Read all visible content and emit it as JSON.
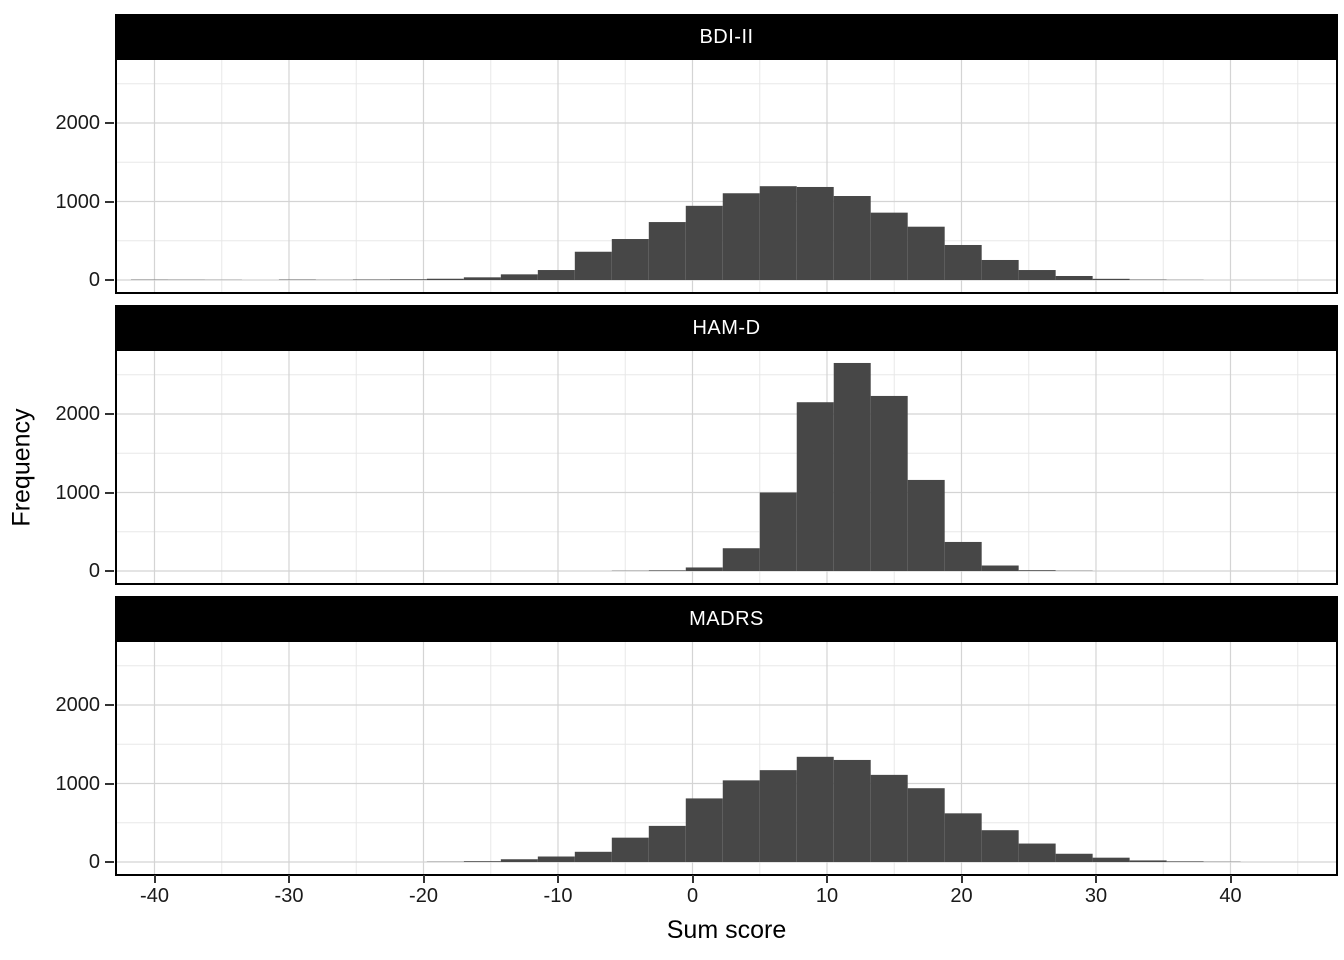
{
  "figure": {
    "x_axis": {
      "title": "Sum score",
      "ticks": [
        -40,
        -30,
        -20,
        -10,
        0,
        10,
        20,
        30,
        40
      ],
      "minor_ticks": [
        -35,
        -25,
        -15,
        -5,
        5,
        15,
        25,
        35,
        45
      ],
      "range": [
        -42.8,
        47.9
      ]
    },
    "y_axis": {
      "title": "Frequency",
      "ticks": [
        0,
        1000,
        2000
      ],
      "minor_ticks": [
        500,
        1500,
        2500
      ],
      "range": [
        -132,
        2782
      ]
    },
    "colors": {
      "bar_fill": "#474747",
      "strip_background": "#000000",
      "strip_text": "#ffffff",
      "grid_major": "#d4d4d4",
      "grid_minor": "#e8e8e8",
      "panel_border": "#000000",
      "tick_text": "#1a1a1a",
      "background": "#ffffff"
    }
  },
  "chart_data": [
    {
      "type": "bar",
      "subtype": "histogram",
      "facet": "BDI-II",
      "xlabel": "Sum score",
      "ylabel": "Frequency",
      "bin_start": -41.75,
      "bin_width": 2.75,
      "frequencies": [
        4,
        3,
        2,
        0,
        5,
        2,
        6,
        9,
        16,
        34,
        72,
        127,
        360,
        522,
        738,
        945,
        1105,
        1195,
        1185,
        1070,
        858,
        679,
        446,
        255,
        127,
        51,
        15,
        5,
        2,
        0,
        0,
        0,
        0
      ]
    },
    {
      "type": "bar",
      "subtype": "histogram",
      "facet": "HAM-D",
      "xlabel": "Sum score",
      "ylabel": "Frequency",
      "bin_start": -41.75,
      "bin_width": 2.75,
      "frequencies": [
        0,
        0,
        0,
        0,
        0,
        0,
        0,
        0,
        0,
        0,
        0,
        0,
        0,
        3,
        8,
        45,
        290,
        1000,
        2150,
        2650,
        2230,
        1160,
        370,
        70,
        10,
        3,
        0,
        0,
        0,
        0,
        0,
        0,
        0
      ]
    },
    {
      "type": "bar",
      "subtype": "histogram",
      "facet": "MADRS",
      "xlabel": "Sum score",
      "ylabel": "Frequency",
      "bin_start": -41.75,
      "bin_width": 2.75,
      "frequencies": [
        0,
        0,
        0,
        0,
        0,
        0,
        0,
        0,
        3,
        10,
        35,
        70,
        130,
        310,
        460,
        810,
        1040,
        1170,
        1340,
        1300,
        1110,
        940,
        620,
        405,
        235,
        105,
        55,
        20,
        8,
        3,
        0,
        0,
        0
      ]
    }
  ]
}
